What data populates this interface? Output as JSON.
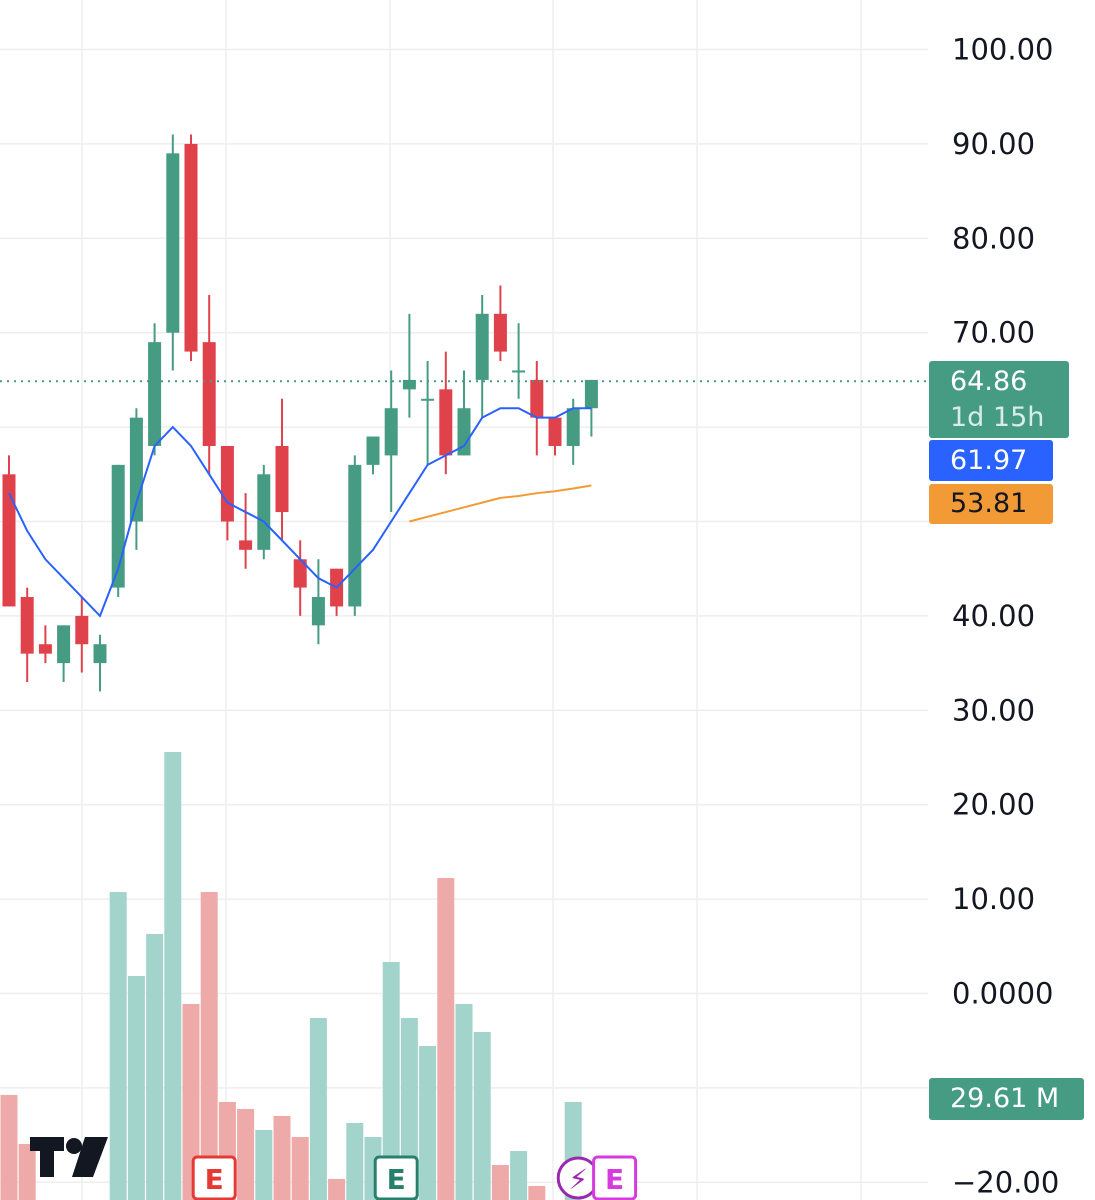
{
  "chart_data": {
    "type": "candlestick",
    "y_axis": {
      "ticks": [
        "100.00",
        "90.00",
        "80.00",
        "70.00",
        "40.00",
        "30.00",
        "20.00",
        "10.00",
        "0.0000",
        "−20.00"
      ],
      "tick_values": [
        100,
        90,
        80,
        70,
        40,
        30,
        20,
        10,
        0,
        -20
      ],
      "range": [
        -20,
        105
      ],
      "grid": true
    },
    "candles": [
      {
        "o": 55,
        "h": 57,
        "l": 41,
        "c": 41
      },
      {
        "o": 42,
        "h": 43,
        "l": 33,
        "c": 36
      },
      {
        "o": 37,
        "h": 39,
        "l": 35,
        "c": 36
      },
      {
        "o": 35,
        "h": 39,
        "l": 33,
        "c": 39
      },
      {
        "o": 40,
        "h": 42,
        "l": 34,
        "c": 37
      },
      {
        "o": 35,
        "h": 38,
        "l": 32,
        "c": 37
      },
      {
        "o": 43,
        "h": 56,
        "l": 42,
        "c": 56
      },
      {
        "o": 50,
        "h": 62,
        "l": 47,
        "c": 61
      },
      {
        "o": 58,
        "h": 71,
        "l": 57,
        "c": 69
      },
      {
        "o": 70,
        "h": 91,
        "l": 66,
        "c": 89
      },
      {
        "o": 90,
        "h": 91,
        "l": 67,
        "c": 68
      },
      {
        "o": 69,
        "h": 74,
        "l": 55,
        "c": 58
      },
      {
        "o": 58,
        "h": 58,
        "l": 48,
        "c": 50
      },
      {
        "o": 48,
        "h": 53,
        "l": 45,
        "c": 47
      },
      {
        "o": 47,
        "h": 56,
        "l": 46,
        "c": 55
      },
      {
        "o": 58,
        "h": 63,
        "l": 48,
        "c": 51
      },
      {
        "o": 46,
        "h": 48,
        "l": 40,
        "c": 43
      },
      {
        "o": 39,
        "h": 46,
        "l": 37,
        "c": 42
      },
      {
        "o": 45,
        "h": 45,
        "l": 40,
        "c": 41
      },
      {
        "o": 41,
        "h": 57,
        "l": 40,
        "c": 56
      },
      {
        "o": 56,
        "h": 59,
        "l": 55,
        "c": 59
      },
      {
        "o": 57,
        "h": 66,
        "l": 51,
        "c": 62
      },
      {
        "o": 64,
        "h": 72,
        "l": 61,
        "c": 65
      },
      {
        "o": 63,
        "h": 67,
        "l": 56,
        "c": 63
      },
      {
        "o": 64,
        "h": 68,
        "l": 55,
        "c": 57
      },
      {
        "o": 57,
        "h": 66,
        "l": 57,
        "c": 62
      },
      {
        "o": 65,
        "h": 74,
        "l": 61,
        "c": 72
      },
      {
        "o": 72,
        "h": 75,
        "l": 67,
        "c": 68
      },
      {
        "o": 66,
        "h": 71,
        "l": 63,
        "c": 66
      },
      {
        "o": 65,
        "h": 67,
        "l": 57,
        "c": 61
      },
      {
        "o": 61,
        "h": 61,
        "l": 57,
        "c": 58
      },
      {
        "o": 58,
        "h": 63,
        "l": 56,
        "c": 62
      },
      {
        "o": 62,
        "h": 65,
        "l": 59,
        "c": 65
      }
    ],
    "volume": [
      7.5,
      4,
      0,
      0,
      0,
      0,
      22,
      16,
      19,
      32,
      14,
      22,
      7,
      6.5,
      5,
      6,
      4.5,
      13,
      1.5,
      5.5,
      4.5,
      17,
      13,
      11,
      23,
      14,
      12,
      2.5,
      3.5,
      1,
      0,
      7,
      0
    ],
    "volume_colors": [
      "down",
      "down",
      "down",
      "down",
      "down",
      "up",
      "up",
      "up",
      "up",
      "up",
      "down",
      "down",
      "down",
      "down",
      "up",
      "down",
      "down",
      "up",
      "down",
      "up",
      "up",
      "up",
      "up",
      "up",
      "down",
      "up",
      "up",
      "down",
      "up",
      "down",
      "down",
      "up",
      "up"
    ],
    "ma_fast": [
      53,
      49,
      46,
      44,
      42,
      40,
      45,
      52,
      58,
      60,
      58,
      55,
      52,
      51,
      50,
      48,
      46,
      44,
      43,
      45,
      47,
      50,
      53,
      56,
      57,
      58,
      61,
      62,
      62,
      61,
      61,
      62,
      62
    ],
    "ma_slow": {
      "start_index": 22,
      "values": [
        50,
        50.5,
        51,
        51.5,
        52,
        52.5,
        52.7,
        53,
        53.2,
        53.5,
        53.81
      ]
    },
    "last_price": 64.86,
    "countdown": "1d 15h",
    "ma_fast_value": "61.97",
    "ma_slow_value": "53.81",
    "volume_label": "29.61 M",
    "markers": [
      {
        "type": "earnings",
        "label": "E",
        "color": "#e53935",
        "index": 11
      },
      {
        "type": "earnings",
        "label": "E",
        "color": "#26806b",
        "index": 21
      },
      {
        "type": "flash",
        "label": "⚡",
        "color": "#9c27b0",
        "index": 31
      },
      {
        "type": "earnings",
        "label": "E",
        "color": "#d63be0",
        "index": 33
      }
    ],
    "colors": {
      "up": "#469b83",
      "down": "#e0424b",
      "up_vol": "#a3d4cc",
      "down_vol": "#eeaaa8",
      "ma_fast": "#2962ff",
      "ma_slow": "#f29b36",
      "grid": "#eeeeee"
    }
  },
  "tags": {
    "price": "64.86",
    "countdown": "1d 15h",
    "ma_fast": "61.97",
    "ma_slow": "53.81",
    "volume": "29.61 M"
  }
}
